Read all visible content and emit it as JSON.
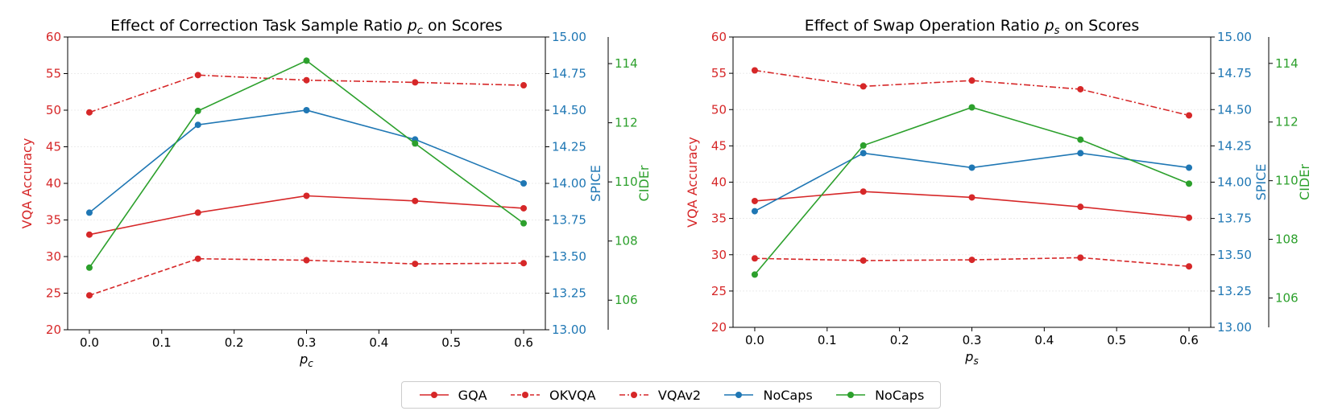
{
  "chart_data": [
    {
      "type": "line",
      "title": "Effect of Correction Task Sample Ratio p_c on Scores",
      "title_prefix": "Effect of Correction Task Sample Ratio ",
      "title_var": "p",
      "title_sub": "c",
      "title_suffix": " on Scores",
      "xlabel_var": "p",
      "xlabel_sub": "c",
      "x": [
        0.0,
        0.15,
        0.3,
        0.45,
        0.6
      ],
      "xticks": [
        "0.0",
        "0.1",
        "0.2",
        "0.3",
        "0.4",
        "0.5",
        "0.6"
      ],
      "xlim": [
        -0.03,
        0.63
      ],
      "axes": {
        "left": {
          "label": "VQA Accuracy",
          "color": "#d62728",
          "lim": [
            20,
            60
          ],
          "ticks": [
            "20",
            "25",
            "30",
            "35",
            "40",
            "45",
            "50",
            "55",
            "60"
          ]
        },
        "right1": {
          "label": "SPICE",
          "color": "#1f77b4",
          "lim": [
            13.0,
            15.0
          ],
          "ticks": [
            "13.00",
            "13.25",
            "13.50",
            "13.75",
            "14.00",
            "14.25",
            "14.50",
            "14.75",
            "15.00"
          ]
        },
        "right2": {
          "label": "CIDEr",
          "color": "#2ca02c",
          "lim": [
            105,
            114.9
          ],
          "ticks": [
            "106",
            "108",
            "110",
            "112",
            "114"
          ]
        }
      },
      "series": [
        {
          "name": "GQA",
          "axis": "left",
          "color": "#d62728",
          "style": "solid",
          "values": [
            33.0,
            36.0,
            38.3,
            37.6,
            36.6
          ]
        },
        {
          "name": "OKVQA",
          "axis": "left",
          "color": "#d62728",
          "style": "dashed",
          "values": [
            24.7,
            29.7,
            29.5,
            29.0,
            29.1
          ]
        },
        {
          "name": "VQAv2",
          "axis": "left",
          "color": "#d62728",
          "style": "dashdot",
          "values": [
            49.7,
            54.8,
            54.1,
            53.8,
            53.4
          ]
        },
        {
          "name": "NoCaps",
          "axis": "right1",
          "color": "#1f77b4",
          "style": "solid",
          "values": [
            13.8,
            14.4,
            14.5,
            14.3,
            14.0
          ]
        },
        {
          "name": "NoCaps",
          "axis": "right2",
          "color": "#2ca02c",
          "style": "solid",
          "values": [
            107.1,
            112.4,
            114.1,
            111.3,
            108.6
          ]
        }
      ]
    },
    {
      "type": "line",
      "title": "Effect of Swap Operation Ratio p_s on Scores",
      "title_prefix": "Effect of Swap Operation Ratio ",
      "title_var": "p",
      "title_sub": "s",
      "title_suffix": " on Scores",
      "xlabel_var": "p",
      "xlabel_sub": "s",
      "x": [
        0.0,
        0.15,
        0.3,
        0.45,
        0.6
      ],
      "xticks": [
        "0.0",
        "0.1",
        "0.2",
        "0.3",
        "0.4",
        "0.5",
        "0.6"
      ],
      "xlim": [
        -0.03,
        0.63
      ],
      "axes": {
        "left": {
          "label": "VQA Accuracy",
          "color": "#d62728",
          "lim": [
            20,
            60
          ],
          "ticks": [
            "20",
            "25",
            "30",
            "35",
            "40",
            "45",
            "50",
            "55",
            "60"
          ]
        },
        "right1": {
          "label": "SPICE",
          "color": "#1f77b4",
          "lim": [
            13.0,
            15.0
          ],
          "ticks": [
            "13.00",
            "13.25",
            "13.50",
            "13.75",
            "14.00",
            "14.25",
            "14.50",
            "14.75",
            "15.00"
          ]
        },
        "right2": {
          "label": "CIDEr",
          "color": "#2ca02c",
          "lim": [
            105,
            114.9
          ],
          "ticks": [
            "106",
            "108",
            "110",
            "112",
            "114"
          ]
        }
      },
      "series": [
        {
          "name": "GQA",
          "axis": "left",
          "color": "#d62728",
          "style": "solid",
          "values": [
            37.4,
            38.7,
            37.9,
            36.6,
            35.1
          ]
        },
        {
          "name": "OKVQA",
          "axis": "left",
          "color": "#d62728",
          "style": "dashed",
          "values": [
            29.5,
            29.2,
            29.3,
            29.6,
            28.4
          ]
        },
        {
          "name": "VQAv2",
          "axis": "left",
          "color": "#d62728",
          "style": "dashdot",
          "values": [
            55.4,
            53.2,
            54.0,
            52.8,
            49.2
          ]
        },
        {
          "name": "NoCaps",
          "axis": "right1",
          "color": "#1f77b4",
          "style": "solid",
          "values": [
            13.8,
            14.2,
            14.1,
            14.2,
            14.1
          ]
        },
        {
          "name": "NoCaps",
          "axis": "right2",
          "color": "#2ca02c",
          "style": "solid",
          "values": [
            106.8,
            111.2,
            112.5,
            111.4,
            109.9
          ]
        }
      ]
    }
  ],
  "legend": [
    {
      "label": "GQA",
      "color": "#d62728",
      "style": "solid"
    },
    {
      "label": "OKVQA",
      "color": "#d62728",
      "style": "dashed"
    },
    {
      "label": "VQAv2",
      "color": "#d62728",
      "style": "dashdot"
    },
    {
      "label": "NoCaps",
      "color": "#1f77b4",
      "style": "solid"
    },
    {
      "label": "NoCaps",
      "color": "#2ca02c",
      "style": "solid"
    }
  ]
}
